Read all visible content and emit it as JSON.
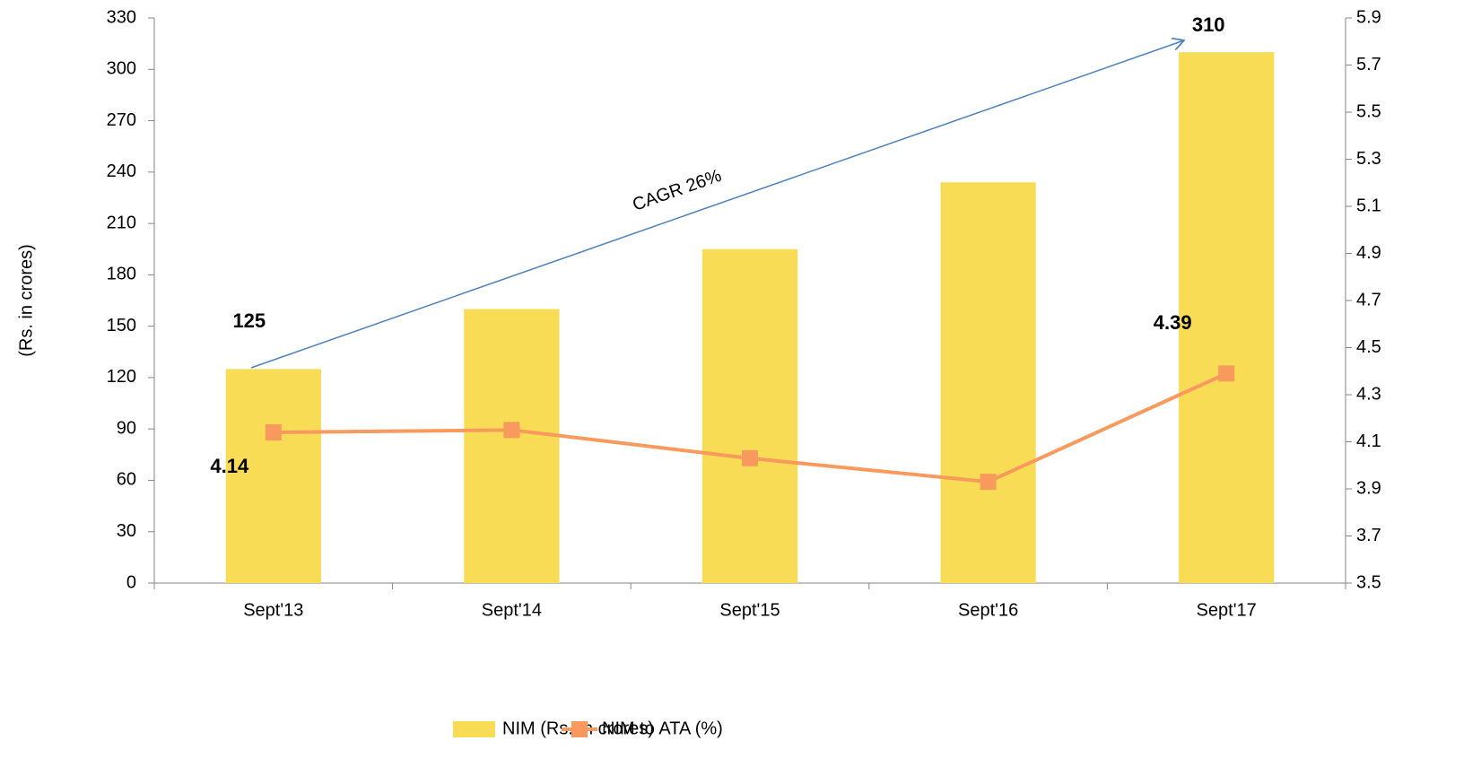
{
  "chart_data": {
    "type": "bar",
    "y_label": "(Rs. in crores)",
    "categories": [
      "Sept'13",
      "Sept'14",
      "Sept'15",
      "Sept'16",
      "Sept'17"
    ],
    "series": [
      {
        "name": "NIM (Rs. In crores)",
        "type": "bar",
        "color": "#f8dc56",
        "values": [
          125,
          160,
          195,
          234,
          310
        ]
      },
      {
        "name": "NIM to ATA (%)",
        "type": "line",
        "axis": "y2",
        "color": "#f89a5e",
        "values": [
          4.14,
          4.15,
          4.03,
          3.93,
          4.39
        ]
      }
    ],
    "ylim": [
      0,
      330
    ],
    "yticks": [
      0,
      30,
      60,
      90,
      120,
      150,
      180,
      210,
      240,
      270,
      300,
      330
    ],
    "y2lim": [
      3.5,
      5.9
    ],
    "y2ticks": [
      3.5,
      3.7,
      3.9,
      4.1,
      4.3,
      4.5,
      4.7,
      4.9,
      5.1,
      5.3,
      5.5,
      5.7,
      5.9
    ],
    "annotations": [
      "CAGR 26%"
    ],
    "legend": "bottom"
  }
}
